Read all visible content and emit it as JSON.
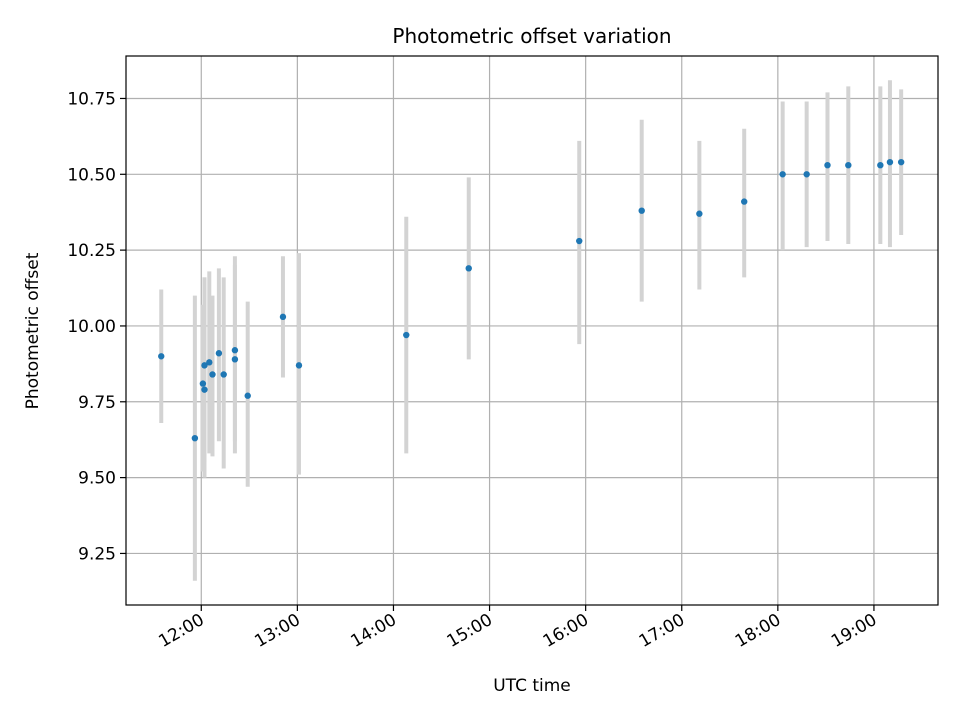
{
  "chart_data": {
    "type": "scatter",
    "title": "Photometric offset variation",
    "xlabel": "UTC time",
    "ylabel": "Photometric offset",
    "x_range": [
      "11:13",
      "19:40"
    ],
    "ylim": [
      9.08,
      10.89
    ],
    "x_ticks": [
      "12:00",
      "13:00",
      "14:00",
      "15:00",
      "16:00",
      "17:00",
      "18:00",
      "19:00"
    ],
    "y_ticks": [
      "9.25",
      "9.50",
      "9.75",
      "10.00",
      "10.25",
      "10.50",
      "10.75"
    ],
    "grid": true,
    "marker_color": "#1f77b4",
    "errorbar_color": "#d3d3d3",
    "points": [
      {
        "x": "11:35",
        "y": 9.9,
        "lo": 9.68,
        "hi": 10.12
      },
      {
        "x": "11:56",
        "y": 9.63,
        "lo": 9.16,
        "hi": 10.1
      },
      {
        "x": "12:01",
        "y": 9.81,
        "lo": 9.52,
        "hi": 10.07
      },
      {
        "x": "12:02",
        "y": 9.79,
        "lo": 9.5,
        "hi": 10.16
      },
      {
        "x": "12:02",
        "y": 9.87,
        "lo": 9.55,
        "hi": 10.16
      },
      {
        "x": "12:05",
        "y": 9.88,
        "lo": 9.58,
        "hi": 10.18
      },
      {
        "x": "12:07",
        "y": 9.84,
        "lo": 9.57,
        "hi": 10.1
      },
      {
        "x": "12:11",
        "y": 9.91,
        "lo": 9.62,
        "hi": 10.19
      },
      {
        "x": "12:14",
        "y": 9.84,
        "lo": 9.53,
        "hi": 10.16
      },
      {
        "x": "12:21",
        "y": 9.89,
        "lo": 9.58,
        "hi": 10.2
      },
      {
        "x": "12:21",
        "y": 9.92,
        "lo": 9.62,
        "hi": 10.23
      },
      {
        "x": "12:29",
        "y": 9.77,
        "lo": 9.47,
        "hi": 10.08
      },
      {
        "x": "12:51",
        "y": 10.03,
        "lo": 9.83,
        "hi": 10.23
      },
      {
        "x": "13:01",
        "y": 9.87,
        "lo": 9.51,
        "hi": 10.24
      },
      {
        "x": "14:08",
        "y": 9.97,
        "lo": 9.58,
        "hi": 10.36
      },
      {
        "x": "14:47",
        "y": 10.19,
        "lo": 9.89,
        "hi": 10.49
      },
      {
        "x": "15:56",
        "y": 10.28,
        "lo": 9.94,
        "hi": 10.61
      },
      {
        "x": "16:35",
        "y": 10.38,
        "lo": 10.08,
        "hi": 10.68
      },
      {
        "x": "17:11",
        "y": 10.37,
        "lo": 10.12,
        "hi": 10.61
      },
      {
        "x": "17:39",
        "y": 10.41,
        "lo": 10.16,
        "hi": 10.65
      },
      {
        "x": "18:03",
        "y": 10.5,
        "lo": 10.25,
        "hi": 10.74
      },
      {
        "x": "18:18",
        "y": 10.5,
        "lo": 10.26,
        "hi": 10.74
      },
      {
        "x": "18:31",
        "y": 10.53,
        "lo": 10.28,
        "hi": 10.77
      },
      {
        "x": "18:44",
        "y": 10.53,
        "lo": 10.27,
        "hi": 10.79
      },
      {
        "x": "19:04",
        "y": 10.53,
        "lo": 10.27,
        "hi": 10.79
      },
      {
        "x": "19:10",
        "y": 10.54,
        "lo": 10.26,
        "hi": 10.81
      },
      {
        "x": "19:17",
        "y": 10.54,
        "lo": 10.3,
        "hi": 10.78
      }
    ]
  }
}
